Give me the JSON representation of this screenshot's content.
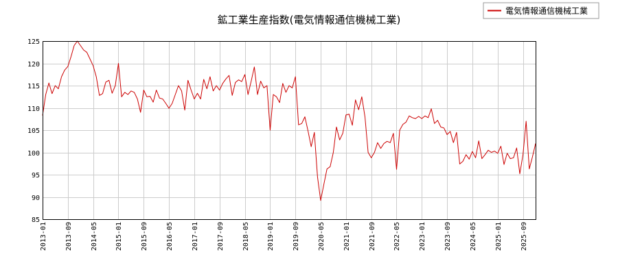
{
  "chart_data": {
    "type": "line",
    "title": "鉱工業生産指数(電気情報通信機械工業)",
    "xlabel": "",
    "ylabel": "",
    "ylim": [
      85,
      125
    ],
    "yticks": [
      85,
      90,
      95,
      100,
      105,
      110,
      115,
      120,
      125
    ],
    "xticks": [
      "2013-01",
      "2013-09",
      "2014-05",
      "2015-01",
      "2015-09",
      "2016-05",
      "2017-01",
      "2017-09",
      "2018-05",
      "2019-01",
      "2019-09",
      "2020-05",
      "2021-01",
      "2021-09",
      "2022-05",
      "2023-01",
      "2023-09",
      "2024-05",
      "2025-01",
      "2025-09"
    ],
    "grid": true,
    "legend_position": "top-right",
    "series": [
      {
        "name": "電気情報通信機械工業",
        "color": "#cc0000",
        "start": "2013-01",
        "values": [
          108.3,
          113.0,
          115.6,
          113.2,
          115.0,
          114.3,
          117.0,
          118.5,
          119.3,
          121.5,
          124.0,
          125.0,
          124.0,
          123.0,
          122.5,
          121.0,
          119.5,
          117.0,
          112.8,
          113.2,
          115.8,
          116.2,
          113.3,
          115.0,
          120.0,
          112.5,
          113.5,
          113.0,
          113.8,
          113.5,
          112.0,
          109.0,
          114.0,
          112.5,
          112.6,
          111.3,
          114.0,
          112.2,
          112.0,
          111.0,
          109.9,
          111.0,
          113.0,
          115.0,
          113.8,
          109.5,
          116.2,
          114.0,
          112.0,
          113.3,
          112.0,
          116.4,
          114.3,
          117.0,
          113.8,
          115.0,
          114.0,
          115.5,
          116.5,
          117.3,
          112.8,
          115.7,
          116.3,
          115.9,
          117.5,
          113.0,
          116.0,
          119.2,
          113.0,
          116.0,
          114.5,
          115.0,
          105.0,
          113.0,
          112.5,
          111.2,
          115.5,
          113.5,
          115.0,
          114.5,
          117.0,
          106.2,
          106.5,
          108.0,
          104.8,
          101.3,
          104.5,
          94.5,
          89.2,
          92.8,
          96.3,
          96.8,
          100.0,
          105.7,
          102.8,
          104.3,
          108.4,
          108.6,
          106.1,
          111.8,
          109.6,
          112.5,
          108.0,
          100.0,
          98.8,
          100.0,
          102.2,
          100.9,
          102.0,
          102.5,
          102.2,
          104.3,
          96.2,
          105.0,
          106.3,
          106.8,
          108.2,
          107.8,
          107.6,
          108.1,
          107.6,
          108.2,
          107.8,
          109.8,
          106.5,
          107.2,
          105.7,
          105.5,
          104.0,
          104.7,
          102.2,
          104.5,
          97.4,
          98.0,
          99.5,
          98.5,
          100.2,
          98.8,
          102.6,
          98.6,
          99.5,
          100.5,
          100.0,
          100.3,
          99.8,
          101.4,
          97.3,
          99.8,
          98.6,
          98.8,
          101.0,
          95.2,
          99.5,
          107.0,
          96.3,
          99.0,
          102.0
        ]
      }
    ]
  }
}
